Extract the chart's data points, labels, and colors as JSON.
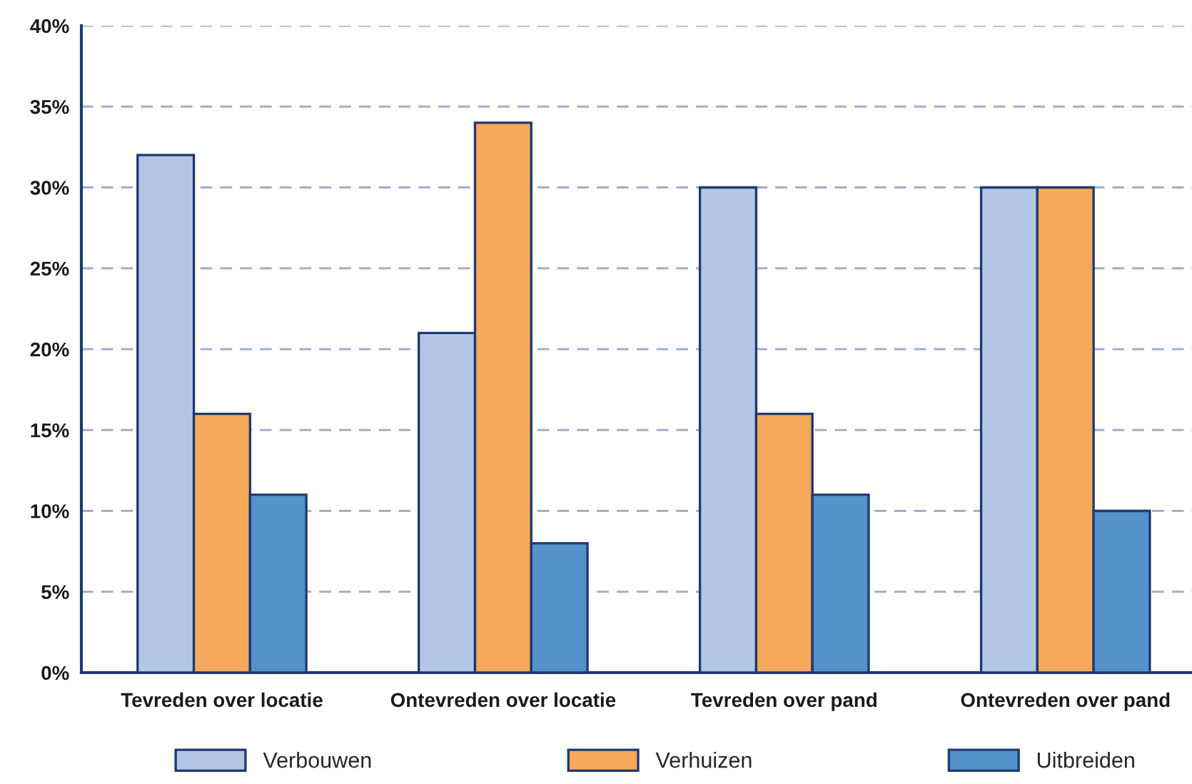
{
  "chart_data": {
    "type": "bar",
    "categories": [
      "Tevreden over locatie",
      "Ontevreden over locatie",
      "Tevreden over pand",
      "Ontevreden over pand"
    ],
    "series": [
      {
        "name": "Verbouwen",
        "color": "#b3c6e5",
        "values": [
          32,
          21,
          30,
          30
        ]
      },
      {
        "name": "Verhuizen",
        "color": "#f5a95b",
        "values": [
          16,
          34,
          16,
          30
        ]
      },
      {
        "name": "Uitbreiden",
        "color": "#5592cb",
        "values": [
          11,
          8,
          11,
          10
        ]
      }
    ],
    "ylim": [
      0,
      40
    ],
    "yticks": [
      {
        "value": 0,
        "label": "0%"
      },
      {
        "value": 5,
        "label": "5%"
      },
      {
        "value": 10,
        "label": "10%"
      },
      {
        "value": 15,
        "label": "15%"
      },
      {
        "value": 20,
        "label": "20%"
      },
      {
        "value": 25,
        "label": "25%"
      },
      {
        "value": 30,
        "label": "30%"
      },
      {
        "value": 35,
        "label": "35%"
      },
      {
        "value": 40,
        "label": "40%"
      }
    ],
    "grid": "y",
    "legend": "bottom"
  }
}
